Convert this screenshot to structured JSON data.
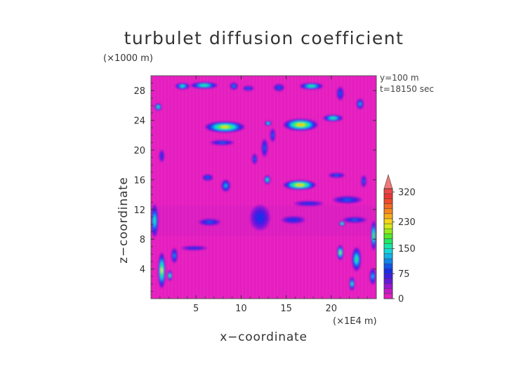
{
  "chart_data": {
    "type": "heatmap",
    "title": "turbulet diffusion coefficient",
    "xlabel": "x−coordinate",
    "ylabel": "z−coordinate",
    "x_unit": "(×1E4 m)",
    "y_unit": "(×1000 m)",
    "annotations": [
      "y=100 m",
      "t=18150 sec"
    ],
    "xlim": [
      0,
      25
    ],
    "ylim": [
      0,
      30
    ],
    "x_ticks": [
      5,
      10,
      15,
      20
    ],
    "y_ticks": [
      4,
      8,
      12,
      16,
      20,
      24,
      28
    ],
    "colorbar": {
      "range": [
        0,
        345
      ],
      "tick_labels": [
        0,
        75,
        150,
        230,
        320
      ],
      "levels": [
        {
          "from": 0,
          "to": 15,
          "color": "#e51fbf"
        },
        {
          "from": 15,
          "to": 30,
          "color": "#c418c8"
        },
        {
          "from": 30,
          "to": 45,
          "color": "#9a18d4"
        },
        {
          "from": 45,
          "to": 60,
          "color": "#6818dc"
        },
        {
          "from": 60,
          "to": 75,
          "color": "#3d1ee6"
        },
        {
          "from": 75,
          "to": 90,
          "color": "#1a2ee8"
        },
        {
          "from": 90,
          "to": 105,
          "color": "#1256ea"
        },
        {
          "from": 105,
          "to": 120,
          "color": "#1186ec"
        },
        {
          "from": 120,
          "to": 135,
          "color": "#12b3ea"
        },
        {
          "from": 135,
          "to": 150,
          "color": "#14d8dc"
        },
        {
          "from": 150,
          "to": 165,
          "color": "#17e8a8"
        },
        {
          "from": 165,
          "to": 180,
          "color": "#22e864"
        },
        {
          "from": 180,
          "to": 195,
          "color": "#52ea2c"
        },
        {
          "from": 195,
          "to": 210,
          "color": "#98ec1c"
        },
        {
          "from": 210,
          "to": 225,
          "color": "#d6ea18"
        },
        {
          "from": 225,
          "to": 240,
          "color": "#f7d51a"
        },
        {
          "from": 240,
          "to": 255,
          "color": "#f8ac1c"
        },
        {
          "from": 255,
          "to": 270,
          "color": "#f7871e"
        },
        {
          "from": 270,
          "to": 285,
          "color": "#f46a22"
        },
        {
          "from": 285,
          "to": 300,
          "color": "#f04a2a"
        },
        {
          "from": 300,
          "to": 315,
          "color": "#ee3434"
        },
        {
          "from": 315,
          "to": 330,
          "color": "#ec4848"
        }
      ],
      "extend_max_color": "#f07878"
    },
    "background_color": "#e51fbf",
    "regions": [
      {
        "x": 3.5,
        "z": 28.6,
        "rx": 0.8,
        "rz": 0.45,
        "value": 150
      },
      {
        "x": 5.9,
        "z": 28.7,
        "rx": 1.5,
        "rz": 0.45,
        "value": 175
      },
      {
        "x": 9.2,
        "z": 28.6,
        "rx": 0.45,
        "rz": 0.5,
        "value": 110
      },
      {
        "x": 10.8,
        "z": 28.3,
        "rx": 0.6,
        "rz": 0.35,
        "value": 90
      },
      {
        "x": 14.2,
        "z": 28.4,
        "rx": 0.6,
        "rz": 0.5,
        "value": 100
      },
      {
        "x": 17.8,
        "z": 28.6,
        "rx": 1.3,
        "rz": 0.45,
        "value": 165
      },
      {
        "x": 21.0,
        "z": 27.6,
        "rx": 0.4,
        "rz": 0.9,
        "value": 90
      },
      {
        "x": 0.8,
        "z": 25.8,
        "rx": 0.4,
        "rz": 0.5,
        "value": 170
      },
      {
        "x": 23.2,
        "z": 26.2,
        "rx": 0.4,
        "rz": 0.7,
        "value": 120
      },
      {
        "x": 8.2,
        "z": 23.1,
        "rx": 2.2,
        "rz": 0.75,
        "value": 235
      },
      {
        "x": 16.6,
        "z": 23.4,
        "rx": 1.9,
        "rz": 0.8,
        "value": 240
      },
      {
        "x": 20.2,
        "z": 24.3,
        "rx": 1.1,
        "rz": 0.45,
        "value": 170
      },
      {
        "x": 13.0,
        "z": 23.6,
        "rx": 0.4,
        "rz": 0.35,
        "value": 160
      },
      {
        "x": 7.9,
        "z": 21.0,
        "rx": 1.3,
        "rz": 0.35,
        "value": 90
      },
      {
        "x": 12.6,
        "z": 20.3,
        "rx": 0.35,
        "rz": 1.2,
        "value": 95
      },
      {
        "x": 13.5,
        "z": 22.0,
        "rx": 0.3,
        "rz": 0.9,
        "value": 100
      },
      {
        "x": 1.2,
        "z": 19.2,
        "rx": 0.3,
        "rz": 0.8,
        "value": 80
      },
      {
        "x": 11.5,
        "z": 18.8,
        "rx": 0.3,
        "rz": 0.7,
        "value": 95
      },
      {
        "x": 6.3,
        "z": 16.3,
        "rx": 0.6,
        "rz": 0.45,
        "value": 90
      },
      {
        "x": 8.3,
        "z": 15.2,
        "rx": 0.5,
        "rz": 0.8,
        "value": 130
      },
      {
        "x": 12.9,
        "z": 16.0,
        "rx": 0.35,
        "rz": 0.6,
        "value": 170
      },
      {
        "x": 16.5,
        "z": 15.3,
        "rx": 1.8,
        "rz": 0.65,
        "value": 245
      },
      {
        "x": 20.6,
        "z": 16.6,
        "rx": 0.9,
        "rz": 0.35,
        "value": 95
      },
      {
        "x": 23.6,
        "z": 15.8,
        "rx": 0.3,
        "rz": 0.8,
        "value": 95
      },
      {
        "x": 17.5,
        "z": 12.8,
        "rx": 1.6,
        "rz": 0.35,
        "value": 85
      },
      {
        "x": 21.8,
        "z": 13.3,
        "rx": 1.6,
        "rz": 0.5,
        "value": 90
      },
      {
        "x": 6.5,
        "z": 10.3,
        "rx": 1.2,
        "rz": 0.45,
        "value": 95
      },
      {
        "x": 12.1,
        "z": 10.9,
        "rx": 1.1,
        "rz": 1.7,
        "value": 85
      },
      {
        "x": 15.8,
        "z": 10.6,
        "rx": 1.3,
        "rz": 0.5,
        "value": 85
      },
      {
        "x": 21.2,
        "z": 10.1,
        "rx": 0.35,
        "rz": 0.35,
        "value": 180
      },
      {
        "x": 22.6,
        "z": 10.6,
        "rx": 1.3,
        "rz": 0.4,
        "value": 90
      },
      {
        "x": 0.4,
        "z": 10.5,
        "rx": 0.4,
        "rz": 2.2,
        "value": 150
      },
      {
        "x": 1.2,
        "z": 3.8,
        "rx": 0.4,
        "rz": 2.4,
        "value": 210
      },
      {
        "x": 2.6,
        "z": 5.8,
        "rx": 0.35,
        "rz": 1.0,
        "value": 115
      },
      {
        "x": 2.1,
        "z": 3.1,
        "rx": 0.25,
        "rz": 0.7,
        "value": 175
      },
      {
        "x": 21.0,
        "z": 6.2,
        "rx": 0.35,
        "rz": 1.0,
        "value": 200
      },
      {
        "x": 22.8,
        "z": 5.3,
        "rx": 0.5,
        "rz": 1.6,
        "value": 165
      },
      {
        "x": 24.7,
        "z": 8.5,
        "rx": 0.3,
        "rz": 2.0,
        "value": 190
      },
      {
        "x": 24.6,
        "z": 3.0,
        "rx": 0.35,
        "rz": 1.1,
        "value": 120
      },
      {
        "x": 22.3,
        "z": 2.0,
        "rx": 0.3,
        "rz": 0.9,
        "value": 150
      },
      {
        "x": 4.8,
        "z": 6.8,
        "rx": 1.4,
        "rz": 0.3,
        "value": 80
      }
    ]
  }
}
